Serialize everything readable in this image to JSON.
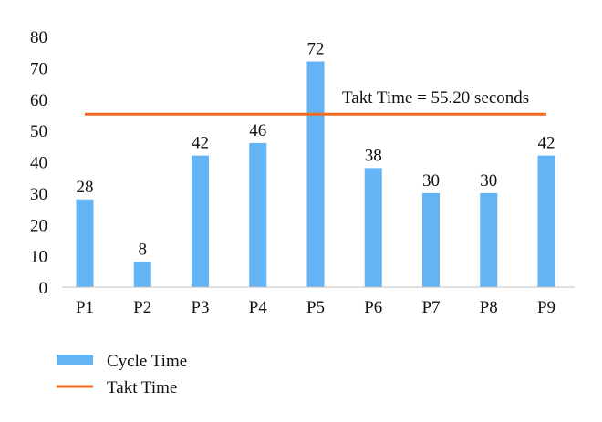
{
  "chart_data": {
    "type": "bar",
    "categories": [
      "P1",
      "P2",
      "P3",
      "P4",
      "P5",
      "P6",
      "P7",
      "P8",
      "P9"
    ],
    "series": [
      {
        "name": "Cycle Time",
        "type": "bar",
        "values": [
          28,
          8,
          42,
          46,
          72,
          38,
          30,
          30,
          42
        ],
        "color": "#63B3F5"
      },
      {
        "name": "Takt Time",
        "type": "line",
        "value": 55.2,
        "color": "#F26A21"
      }
    ],
    "yticks": [
      "0",
      "10",
      "20",
      "30",
      "40",
      "50",
      "60",
      "70",
      "80"
    ],
    "ylim": [
      0,
      80
    ],
    "annotation": "Takt Time = 55.20 seconds",
    "legend": {
      "position": "bottom-left",
      "entries": [
        "Cycle Time",
        "Takt Time"
      ]
    },
    "grid": false
  }
}
